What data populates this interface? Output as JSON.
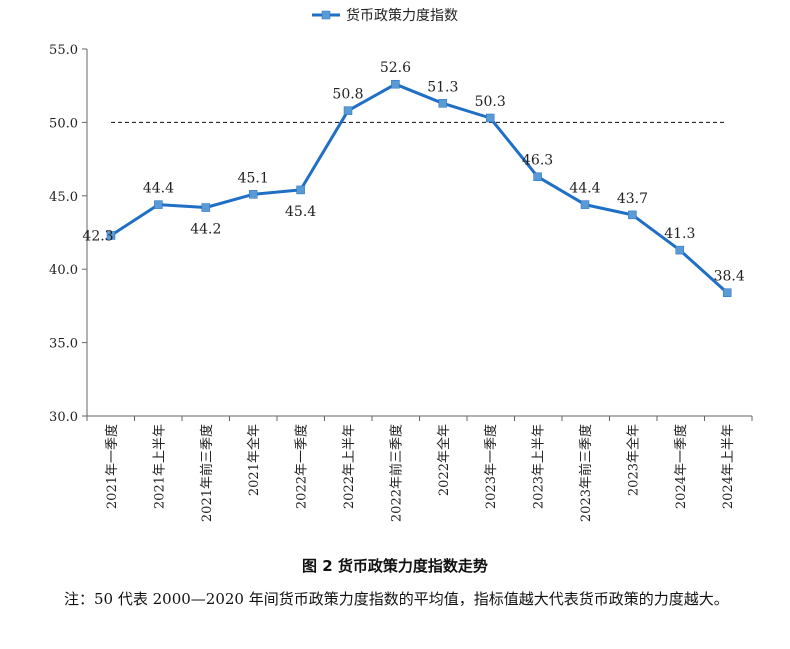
{
  "chart_data": {
    "type": "line",
    "title": "",
    "categories": [
      "2021年一季度",
      "2021年上半年",
      "2021年前三季度",
      "2021年全年",
      "2022年一季度",
      "2022年上半年",
      "2022年前三季度",
      "2022年全年",
      "2023年一季度",
      "2023年上半年",
      "2023年前三季度",
      "2023年全年",
      "2024年一季度",
      "2024年上半年"
    ],
    "series": [
      {
        "name": "货币政策力度指数",
        "values": [
          42.3,
          44.4,
          44.2,
          45.1,
          45.4,
          50.8,
          52.6,
          51.3,
          50.3,
          46.3,
          44.4,
          43.7,
          41.3,
          38.4
        ],
        "labels": [
          "42.3",
          "44.4",
          "44.2",
          "45.1",
          "45.4",
          "50.8",
          "52.6",
          "51.3",
          "50.3",
          "46.3",
          "44.4",
          "43.7",
          "41.3",
          "38.4"
        ],
        "color": "#1f6fc5",
        "marker_color": "#5b9bd5"
      }
    ],
    "ylim": [
      30,
      55
    ],
    "yticks": [
      30,
      35,
      40,
      45,
      50,
      55
    ],
    "ytick_labels": [
      "30.0",
      "35.0",
      "40.0",
      "45.0",
      "50.0",
      "55.0"
    ],
    "reference_line": 50,
    "legend_position": "top-center",
    "grid": false,
    "xlabel": "",
    "ylabel": ""
  },
  "caption": "图 2 货币政策力度指数走势",
  "note": "注：50 代表 2000—2020 年间货币政策力度指数的平均值，指标值越大代表货币政策的力度越大。"
}
